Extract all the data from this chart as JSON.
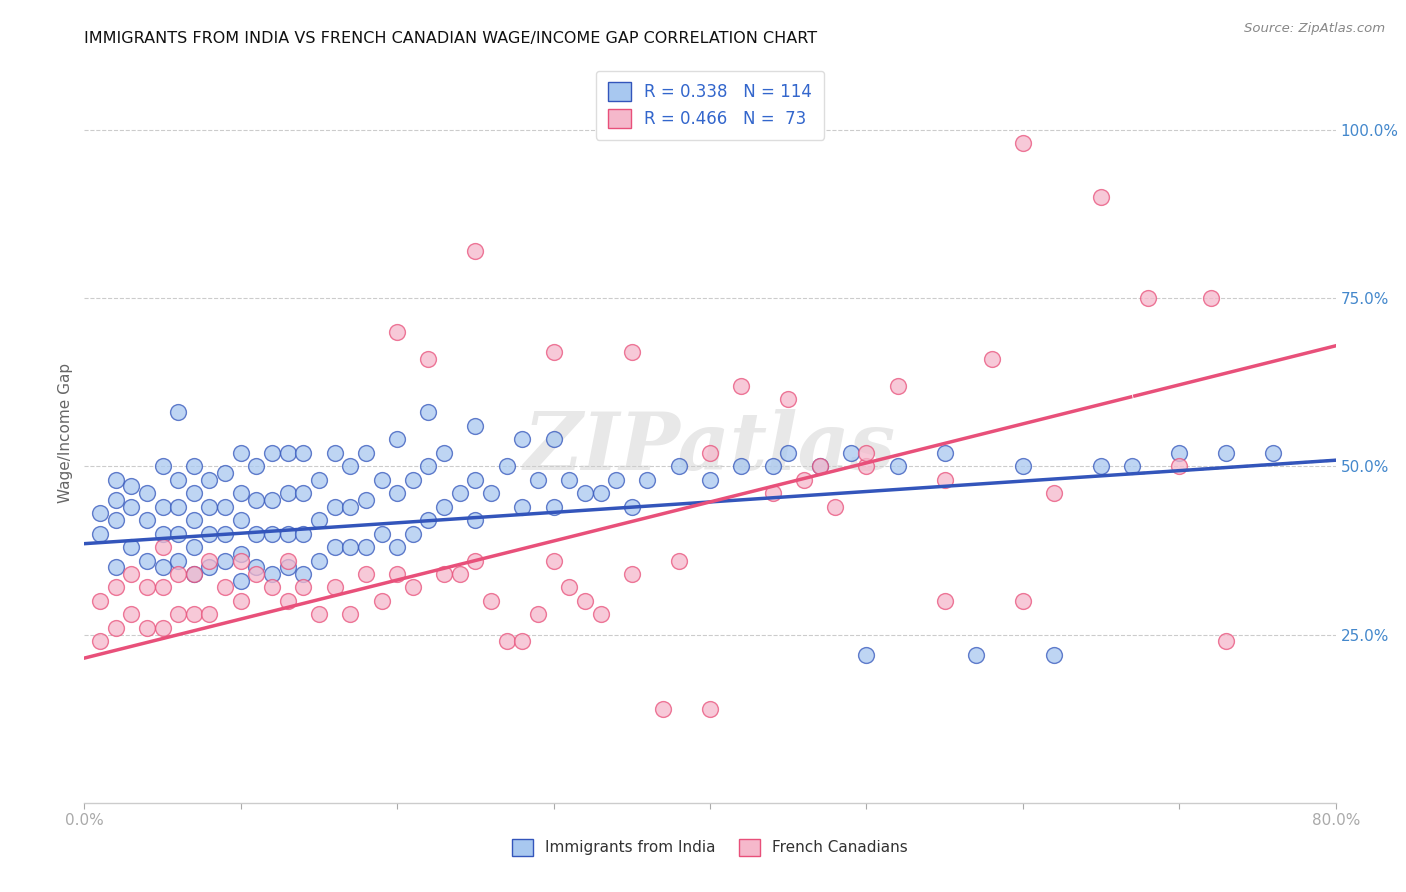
{
  "title": "IMMIGRANTS FROM INDIA VS FRENCH CANADIAN WAGE/INCOME GAP CORRELATION CHART",
  "source": "Source: ZipAtlas.com",
  "ylabel": "Wage/Income Gap",
  "xlim": [
    0.0,
    0.8
  ],
  "ylim": [
    0.0,
    1.1
  ],
  "yticks_right": [
    0.25,
    0.5,
    0.75,
    1.0
  ],
  "ytick_right_labels": [
    "25.0%",
    "50.0%",
    "75.0%",
    "100.0%"
  ],
  "blue_color": "#A8C8F0",
  "pink_color": "#F5B8CB",
  "blue_line_color": "#3355BB",
  "pink_line_color": "#E8507A",
  "dashed_line_color": "#AAAAAA",
  "legend_R_blue": "0.338",
  "legend_N_blue": "114",
  "legend_R_pink": "0.466",
  "legend_N_pink": "73",
  "watermark": "ZIPatlas",
  "blue_intercept": 0.385,
  "blue_slope": 0.155,
  "pink_intercept": 0.215,
  "pink_slope": 0.58,
  "blue_scatter_x": [
    0.01,
    0.01,
    0.02,
    0.02,
    0.02,
    0.02,
    0.03,
    0.03,
    0.03,
    0.04,
    0.04,
    0.04,
    0.05,
    0.05,
    0.05,
    0.05,
    0.06,
    0.06,
    0.06,
    0.06,
    0.06,
    0.07,
    0.07,
    0.07,
    0.07,
    0.07,
    0.08,
    0.08,
    0.08,
    0.08,
    0.09,
    0.09,
    0.09,
    0.09,
    0.1,
    0.1,
    0.1,
    0.1,
    0.1,
    0.11,
    0.11,
    0.11,
    0.11,
    0.12,
    0.12,
    0.12,
    0.12,
    0.13,
    0.13,
    0.13,
    0.13,
    0.14,
    0.14,
    0.14,
    0.14,
    0.15,
    0.15,
    0.15,
    0.16,
    0.16,
    0.16,
    0.17,
    0.17,
    0.17,
    0.18,
    0.18,
    0.18,
    0.19,
    0.19,
    0.2,
    0.2,
    0.2,
    0.21,
    0.21,
    0.22,
    0.22,
    0.22,
    0.23,
    0.23,
    0.24,
    0.25,
    0.25,
    0.25,
    0.26,
    0.27,
    0.28,
    0.28,
    0.29,
    0.3,
    0.3,
    0.31,
    0.32,
    0.33,
    0.34,
    0.35,
    0.36,
    0.38,
    0.4,
    0.42,
    0.44,
    0.45,
    0.47,
    0.49,
    0.5,
    0.52,
    0.55,
    0.57,
    0.6,
    0.62,
    0.65,
    0.67,
    0.7,
    0.73,
    0.76
  ],
  "blue_scatter_y": [
    0.4,
    0.43,
    0.35,
    0.42,
    0.45,
    0.48,
    0.38,
    0.44,
    0.47,
    0.36,
    0.42,
    0.46,
    0.35,
    0.4,
    0.44,
    0.5,
    0.36,
    0.4,
    0.44,
    0.48,
    0.58,
    0.34,
    0.38,
    0.42,
    0.46,
    0.5,
    0.35,
    0.4,
    0.44,
    0.48,
    0.36,
    0.4,
    0.44,
    0.49,
    0.33,
    0.37,
    0.42,
    0.46,
    0.52,
    0.35,
    0.4,
    0.45,
    0.5,
    0.34,
    0.4,
    0.45,
    0.52,
    0.35,
    0.4,
    0.46,
    0.52,
    0.34,
    0.4,
    0.46,
    0.52,
    0.36,
    0.42,
    0.48,
    0.38,
    0.44,
    0.52,
    0.38,
    0.44,
    0.5,
    0.38,
    0.45,
    0.52,
    0.4,
    0.48,
    0.38,
    0.46,
    0.54,
    0.4,
    0.48,
    0.42,
    0.5,
    0.58,
    0.44,
    0.52,
    0.46,
    0.42,
    0.48,
    0.56,
    0.46,
    0.5,
    0.44,
    0.54,
    0.48,
    0.44,
    0.54,
    0.48,
    0.46,
    0.46,
    0.48,
    0.44,
    0.48,
    0.5,
    0.48,
    0.5,
    0.5,
    0.52,
    0.5,
    0.52,
    0.22,
    0.5,
    0.52,
    0.22,
    0.5,
    0.22,
    0.5,
    0.5,
    0.52,
    0.52,
    0.52
  ],
  "pink_scatter_x": [
    0.01,
    0.01,
    0.02,
    0.02,
    0.03,
    0.03,
    0.04,
    0.04,
    0.05,
    0.05,
    0.05,
    0.06,
    0.06,
    0.07,
    0.07,
    0.08,
    0.08,
    0.09,
    0.1,
    0.1,
    0.11,
    0.12,
    0.13,
    0.13,
    0.14,
    0.15,
    0.16,
    0.17,
    0.18,
    0.19,
    0.2,
    0.21,
    0.22,
    0.23,
    0.24,
    0.25,
    0.26,
    0.27,
    0.28,
    0.29,
    0.3,
    0.31,
    0.32,
    0.33,
    0.35,
    0.37,
    0.38,
    0.4,
    0.42,
    0.44,
    0.46,
    0.48,
    0.5,
    0.52,
    0.55,
    0.58,
    0.6,
    0.62,
    0.65,
    0.68,
    0.7,
    0.72,
    0.73,
    0.2,
    0.25,
    0.3,
    0.35,
    0.4,
    0.45,
    0.47,
    0.5,
    0.55,
    0.6
  ],
  "pink_scatter_y": [
    0.24,
    0.3,
    0.26,
    0.32,
    0.28,
    0.34,
    0.26,
    0.32,
    0.26,
    0.32,
    0.38,
    0.28,
    0.34,
    0.28,
    0.34,
    0.28,
    0.36,
    0.32,
    0.3,
    0.36,
    0.34,
    0.32,
    0.3,
    0.36,
    0.32,
    0.28,
    0.32,
    0.28,
    0.34,
    0.3,
    0.34,
    0.32,
    0.66,
    0.34,
    0.34,
    0.36,
    0.3,
    0.24,
    0.24,
    0.28,
    0.36,
    0.32,
    0.3,
    0.28,
    0.34,
    0.14,
    0.36,
    0.14,
    0.62,
    0.46,
    0.48,
    0.44,
    0.5,
    0.62,
    0.48,
    0.66,
    0.3,
    0.46,
    0.9,
    0.75,
    0.5,
    0.75,
    0.24,
    0.7,
    0.82,
    0.67,
    0.67,
    0.52,
    0.6,
    0.5,
    0.52,
    0.3,
    0.98
  ]
}
